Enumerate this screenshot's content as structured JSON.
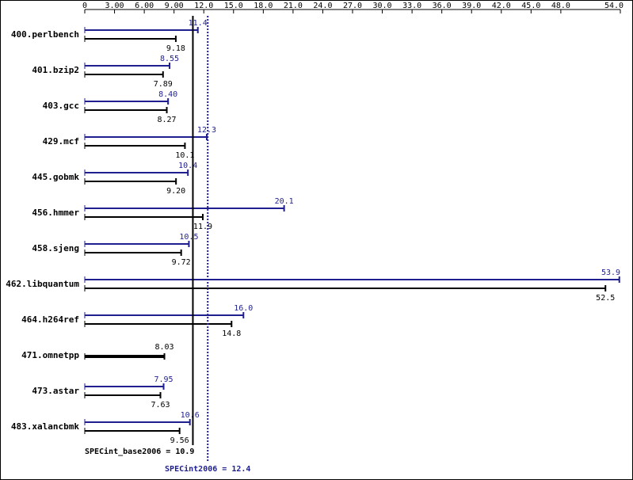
{
  "chart_data": {
    "type": "bar",
    "categories": [
      "400.perlbench",
      "401.bzip2",
      "403.gcc",
      "429.mcf",
      "445.gobmk",
      "456.hmmer",
      "458.sjeng",
      "462.libquantum",
      "464.h264ref",
      "471.omnetpp",
      "473.astar",
      "483.xalancbmk"
    ],
    "series": [
      {
        "color": "#1f1f8f",
        "values": [
          11.4,
          8.55,
          8.4,
          12.3,
          10.4,
          20.1,
          10.5,
          53.9,
          16.0,
          null,
          7.95,
          10.6
        ],
        "value_labels": [
          "11.4",
          "8.55",
          "8.40",
          "12.3",
          "10.4",
          "20.1",
          "10.5",
          "53.9",
          "16.0",
          null,
          "7.95",
          "10.6"
        ]
      },
      {
        "color": "#000000",
        "values": [
          9.18,
          7.89,
          8.27,
          10.1,
          9.2,
          11.9,
          9.72,
          52.5,
          14.8,
          8.03,
          7.63,
          9.56
        ],
        "value_labels": [
          "9.18",
          "7.89",
          "8.27",
          "10.1",
          "9.20",
          "11.9",
          "9.72",
          "52.5",
          "14.8",
          "8.03",
          "7.63",
          "9.56"
        ]
      }
    ],
    "xlim": [
      0,
      54
    ],
    "xticks": [
      0,
      {
        "value": 3,
        "label": "3.00"
      },
      {
        "value": 6,
        "label": "6.00"
      },
      {
        "value": 9,
        "label": "9.00"
      },
      {
        "value": 12,
        "label": "12.0"
      },
      {
        "value": 15,
        "label": "15.0"
      },
      {
        "value": 18,
        "label": "18.0"
      },
      {
        "value": 21,
        "label": "21.0"
      },
      {
        "value": 24,
        "label": "24.0"
      },
      {
        "value": 27,
        "label": "27.0"
      },
      {
        "value": 30,
        "label": "30.0"
      },
      {
        "value": 33,
        "label": "33.0"
      },
      {
        "value": 36,
        "label": "36.0"
      },
      {
        "value": 39,
        "label": "39.0"
      },
      {
        "value": 42,
        "label": "42.0"
      },
      {
        "value": 45,
        "label": "45.0"
      },
      {
        "value": 48,
        "label": "48.0"
      },
      {
        "value": 54,
        "label": "54.0"
      }
    ],
    "reference_lines": [
      {
        "label": "SPECint_base2006 = 10.9",
        "value": 10.9,
        "color": "#000000"
      },
      {
        "label": "SPECint2006 = 12.4",
        "value": 12.4,
        "color": "#1f1f8f"
      }
    ]
  }
}
